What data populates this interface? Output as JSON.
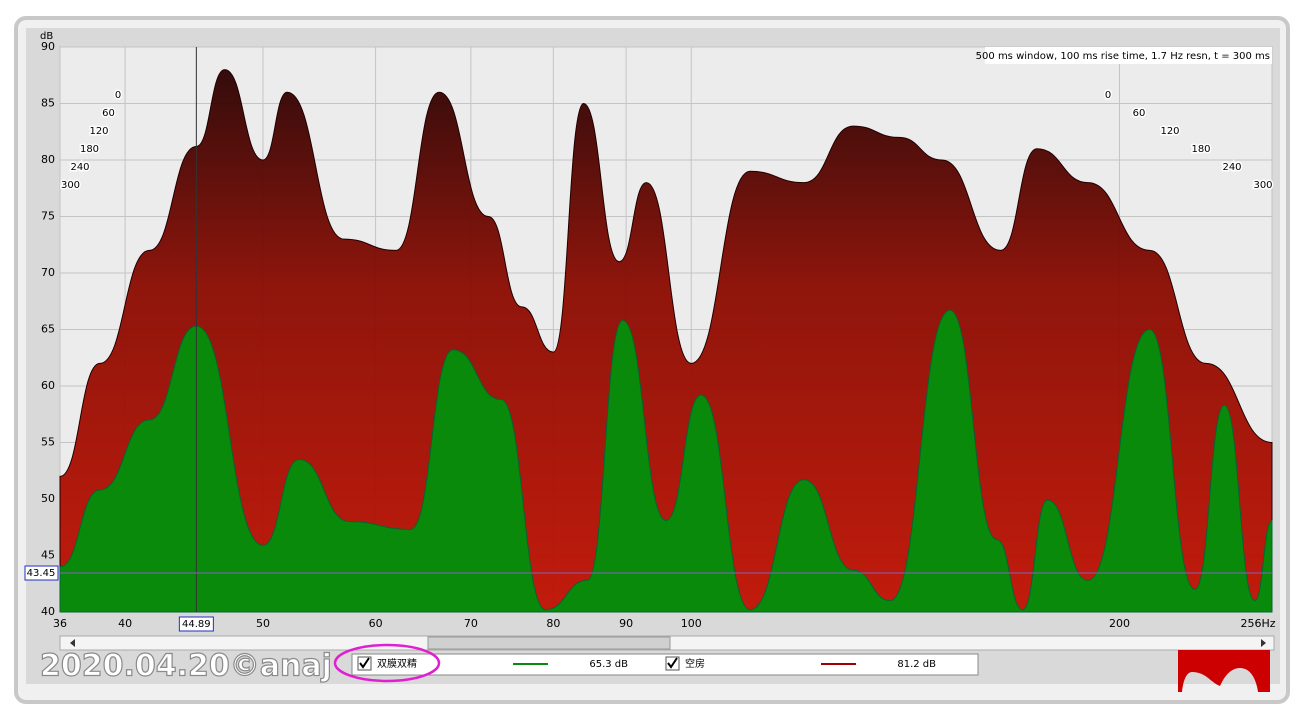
{
  "chart_data": {
    "type": "waterfall",
    "annotation": "500 ms window, 100 ms rise time,  1.7 Hz resn, t = 300 ms",
    "y_label": "dB",
    "xscale": "log",
    "xlim": [
      36,
      256
    ],
    "xticks": [
      36,
      40,
      50,
      60,
      70,
      80,
      90,
      100,
      200,
      {
        "value": 256,
        "label": "256Hz"
      }
    ],
    "ylim": [
      40,
      90
    ],
    "yticks": [
      40,
      45,
      50,
      55,
      60,
      65,
      70,
      75,
      80,
      85,
      90
    ],
    "depth_ticks": [
      0,
      60,
      120,
      180,
      240,
      300
    ],
    "cursor_x": 44.89,
    "cursor_y": 43.45,
    "grid": true,
    "watermark": "2020.04.20©anaj",
    "series": [
      {
        "name": "空房",
        "color": "#a00000",
        "readout": "81.2 dB",
        "x": [
          36,
          38.4,
          41.6,
          44.89,
          47,
          50,
          52,
          57,
          62,
          66.5,
          72,
          76,
          80,
          84,
          89,
          93,
          100,
          110,
          120,
          130,
          140,
          150,
          165,
          175,
          190,
          210,
          230,
          256
        ],
        "values": [
          52,
          62,
          72,
          81.2,
          88,
          80,
          86,
          73,
          72,
          86,
          75,
          67,
          63,
          85,
          71,
          78,
          62,
          79,
          78,
          83,
          82,
          80,
          72,
          81,
          78,
          72,
          62,
          55
        ]
      },
      {
        "name": "双膜双精",
        "color": "#0a8a0a",
        "readout": "65.3 dB",
        "x": [
          36,
          38.4,
          41.6,
          44.89,
          50,
          53,
          57.5,
          63.5,
          68,
          73.5,
          79,
          84.5,
          89.5,
          96,
          101.6,
          110,
          120,
          130,
          138,
          152,
          164,
          171,
          178,
          190,
          210,
          226,
          237,
          249,
          256
        ],
        "values": [
          44,
          50.8,
          57,
          65.3,
          45.9,
          53.5,
          48,
          47.3,
          63.2,
          58.8,
          40.2,
          42.8,
          65.8,
          48.1,
          59.2,
          40.2,
          51.7,
          43.7,
          41,
          66.7,
          46.4,
          40.2,
          49.9,
          42.8,
          65,
          42,
          58.3,
          41,
          48.1
        ]
      }
    ]
  }
}
